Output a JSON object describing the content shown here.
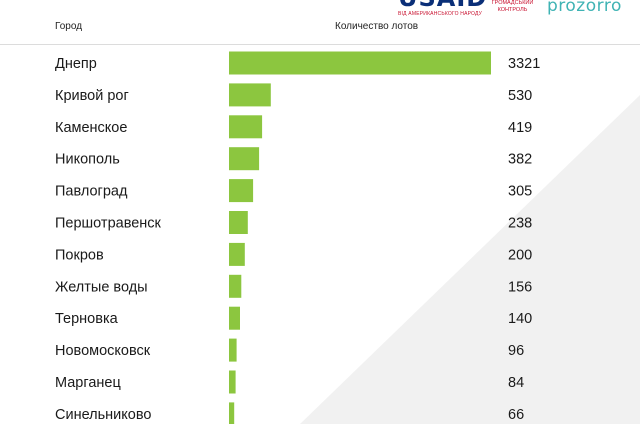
{
  "header": {
    "city_label": "Город",
    "count_label": "Количество лотов"
  },
  "logos": {
    "usaid_word": "USAID",
    "usaid_sub": "ВІД АМЕРИКАНСЬКОГО НАРОДУ",
    "gk_line1": "ГРОМАДСЬКИЙ",
    "gk_line2": "КОНТРОЛЬ",
    "prozorro": "prozorro"
  },
  "colors": {
    "bar": "#8cc63f",
    "usaid_blue": "#0a2f78",
    "usaid_red": "#c8102e",
    "prozorro": "#3fb3b4",
    "background_shade": "#f1f1f1"
  },
  "chart_data": {
    "type": "bar",
    "orientation": "horizontal",
    "categories": [
      "Днепр",
      "Кривой рог",
      "Каменское",
      "Никополь",
      "Павлоград",
      "Першотравенск",
      "Покров",
      "Желтые воды",
      "Терновка",
      "Новомосковск",
      "Марганец",
      "Синельниково"
    ],
    "values": [
      3321,
      530,
      419,
      382,
      305,
      238,
      200,
      156,
      140,
      96,
      84,
      66
    ],
    "xlabel": "Количество лотов",
    "ylabel": "Город",
    "xlim": [
      0,
      3321
    ],
    "grid": false,
    "legend": "none"
  }
}
